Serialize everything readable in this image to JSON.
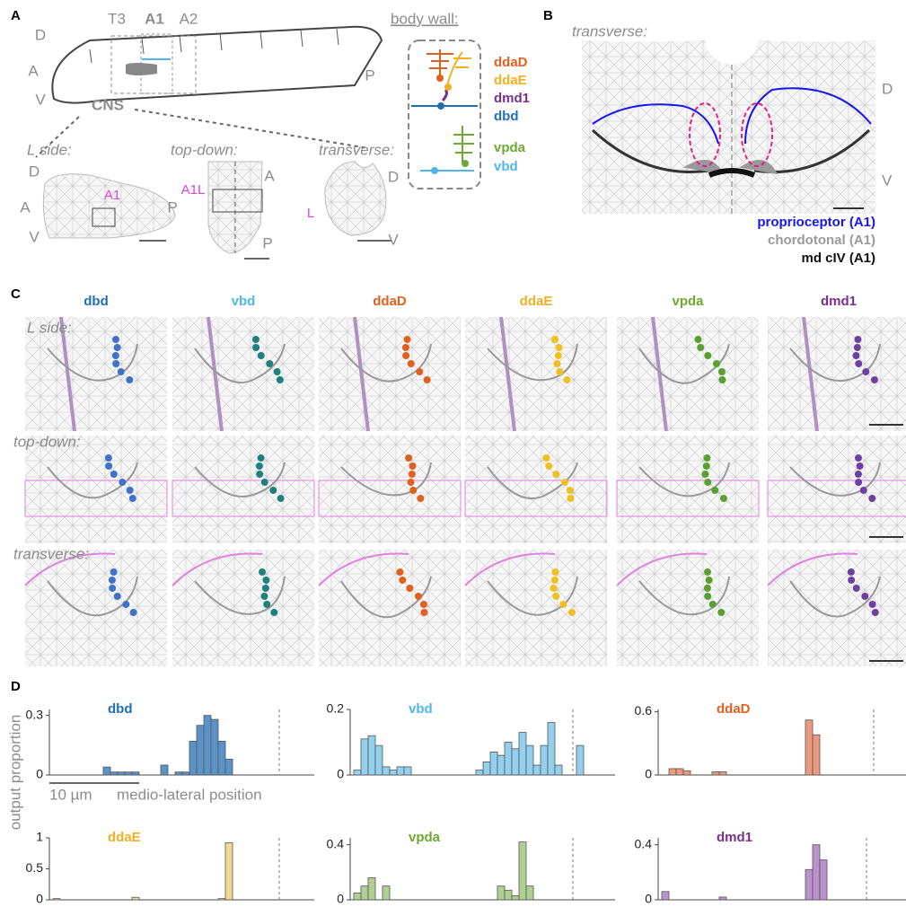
{
  "panel_a": {
    "letter": "A",
    "segments": [
      "T3",
      "A1",
      "A2"
    ],
    "left_axis": [
      "D",
      "A",
      "V"
    ],
    "right_axis": "P",
    "cns": "CNS",
    "views": [
      "L side:",
      "top-down:",
      "transverse:"
    ],
    "l_side": [
      "D",
      "A",
      "V",
      "P",
      "A1"
    ],
    "top_down": [
      "A1L",
      "A",
      "P"
    ],
    "transverse": [
      "D",
      "L",
      "V"
    ],
    "body_wall_title": "body wall:",
    "neurons": [
      {
        "name": "ddaD",
        "color": "#e0601e"
      },
      {
        "name": "ddaE",
        "color": "#f0b020"
      },
      {
        "name": "dmd1",
        "color": "#7a2f8f"
      },
      {
        "name": "dbd",
        "color": "#1f6fb8"
      },
      {
        "name": "vpda",
        "color": "#6aaa30"
      },
      {
        "name": "vbd",
        "color": "#4fb7e8"
      }
    ]
  },
  "panel_b": {
    "letter": "B",
    "view": "transverse:",
    "dorsal": "D",
    "ventral": "V",
    "legend": [
      {
        "name": "proprioceptor (A1)",
        "color": "#1515f0"
      },
      {
        "name": "chordotonal (A1)",
        "color": "#9a9a9a"
      },
      {
        "name": "md cIV (A1)",
        "color": "#111111"
      }
    ]
  },
  "panel_c": {
    "letter": "C",
    "neurons": [
      {
        "name": "dbd",
        "color": "#1f6fb8",
        "mark": "#3f72c8"
      },
      {
        "name": "vbd",
        "color": "#4fb7e8",
        "mark": "#1f8080"
      },
      {
        "name": "ddaD",
        "color": "#e0601e",
        "mark": "#e0601e"
      },
      {
        "name": "ddaE",
        "color": "#f0b020",
        "mark": "#f0c020"
      },
      {
        "name": "vpda",
        "color": "#6aaa30",
        "mark": "#5aa030"
      },
      {
        "name": "dmd1",
        "color": "#7a2f8f",
        "mark": "#7040a0"
      }
    ],
    "rows": [
      "L side:",
      "top-down:",
      "transverse:"
    ]
  },
  "panel_d": {
    "letter": "D",
    "y_label": "output proportion",
    "scale_bar": "10 µm",
    "x_label": "medio-lateral position"
  },
  "chart_data": [
    {
      "type": "bar",
      "title": "dbd",
      "title_color": "#1f6fb8",
      "color": "#5b93c8",
      "categories": [
        null,
        null,
        null,
        null,
        null,
        null,
        null,
        null,
        null,
        null,
        null,
        null,
        null,
        null,
        null,
        null,
        null,
        null,
        null,
        null,
        null,
        null,
        null,
        null,
        null,
        null,
        null,
        null,
        null,
        null,
        null,
        null,
        null,
        null,
        null,
        null
      ],
      "values": [
        0,
        0,
        0,
        0,
        0,
        0,
        0,
        0.04,
        0.015,
        0.015,
        0.015,
        0.015,
        0,
        0,
        0,
        0.05,
        0,
        0.015,
        0.015,
        0.17,
        0.25,
        0.3,
        0.28,
        0.17,
        0.08,
        0,
        0,
        0,
        0,
        0,
        0,
        0,
        0,
        0,
        0,
        0
      ],
      "ylim": [
        0,
        0.33
      ],
      "yticks": [
        0,
        0.3
      ]
    },
    {
      "type": "bar",
      "title": "vbd",
      "title_color": "#4fb7e8",
      "color": "#92d0ee",
      "categories": [
        null,
        null,
        null,
        null,
        null,
        null,
        null,
        null,
        null,
        null,
        null,
        null,
        null,
        null,
        null,
        null,
        null,
        null,
        null,
        null,
        null,
        null,
        null,
        null,
        null,
        null,
        null,
        null,
        null,
        null,
        null,
        null,
        null,
        null,
        null,
        null
      ],
      "values": [
        0.015,
        0.11,
        0.12,
        0.09,
        0.025,
        0.015,
        0.025,
        0.025,
        0,
        0,
        0,
        0,
        0,
        0,
        0,
        0,
        0,
        0.015,
        0.04,
        0.07,
        0.06,
        0.1,
        0.08,
        0.13,
        0.09,
        0.03,
        0.09,
        0.16,
        0.03,
        0,
        0,
        0.09,
        0,
        0,
        0,
        0
      ],
      "ylim": [
        0,
        0.2
      ],
      "yticks": [
        0,
        0.2
      ]
    },
    {
      "type": "bar",
      "title": "ddaD",
      "title_color": "#e0601e",
      "color": "#eb9a80",
      "categories": [
        null,
        null,
        null,
        null,
        null,
        null,
        null,
        null,
        null,
        null,
        null,
        null,
        null,
        null,
        null,
        null,
        null,
        null,
        null,
        null,
        null,
        null,
        null,
        null,
        null,
        null,
        null,
        null,
        null,
        null,
        null,
        null,
        null,
        null,
        null,
        null
      ],
      "values": [
        0,
        0.06,
        0.06,
        0.04,
        0,
        0,
        0,
        0.03,
        0.03,
        0,
        0,
        0,
        0,
        0,
        0,
        0,
        0,
        0,
        0,
        0,
        0.52,
        0.38,
        0,
        0,
        0,
        0,
        0,
        0,
        0,
        0,
        0,
        0,
        0,
        0,
        0,
        0
      ],
      "ylim": [
        0,
        0.62
      ],
      "yticks": [
        0,
        0.6
      ]
    },
    {
      "type": "bar",
      "title": "ddaE",
      "title_color": "#f0b020",
      "color": "#f4d890",
      "categories": [
        null,
        null,
        null,
        null,
        null,
        null,
        null,
        null,
        null,
        null,
        null,
        null,
        null,
        null,
        null,
        null,
        null,
        null,
        null,
        null,
        null,
        null,
        null,
        null,
        null,
        null,
        null,
        null,
        null,
        null,
        null,
        null,
        null,
        null,
        null,
        null
      ],
      "values": [
        0.02,
        0,
        0,
        0,
        0,
        0,
        0,
        0,
        0,
        0,
        0,
        0.04,
        0,
        0,
        0,
        0,
        0,
        0,
        0,
        0,
        0,
        0,
        0,
        0.02,
        0.92,
        0,
        0,
        0,
        0,
        0,
        0,
        0,
        0,
        0,
        0,
        0
      ],
      "ylim": [
        0,
        1
      ],
      "yticks": [
        0,
        0.5,
        1
      ]
    },
    {
      "type": "bar",
      "title": "vpda",
      "title_color": "#6aaa30",
      "color": "#b0cf92",
      "categories": [
        null,
        null,
        null,
        null,
        null,
        null,
        null,
        null,
        null,
        null,
        null,
        null,
        null,
        null,
        null,
        null,
        null,
        null,
        null,
        null,
        null,
        null,
        null,
        null,
        null,
        null,
        null,
        null,
        null,
        null,
        null,
        null,
        null,
        null,
        null,
        null
      ],
      "values": [
        0.05,
        0.1,
        0.16,
        0,
        0.1,
        0,
        0,
        0,
        0,
        0,
        0,
        0,
        0,
        0,
        0,
        0,
        0,
        0,
        0,
        0,
        0.1,
        0.07,
        0.03,
        0.42,
        0.1,
        0,
        0,
        0,
        0,
        0,
        0,
        0,
        0,
        0,
        0,
        0
      ],
      "ylim": [
        0,
        0.45
      ],
      "yticks": [
        0,
        0.4
      ]
    },
    {
      "type": "bar",
      "title": "dmd1",
      "title_color": "#7a2f8f",
      "color": "#bb92cc",
      "categories": [
        null,
        null,
        null,
        null,
        null,
        null,
        null,
        null,
        null,
        null,
        null,
        null,
        null,
        null,
        null,
        null,
        null,
        null,
        null,
        null,
        null,
        null,
        null,
        null,
        null,
        null,
        null,
        null,
        null,
        null,
        null,
        null,
        null,
        null,
        null,
        null
      ],
      "values": [
        0.06,
        0,
        0,
        0,
        0,
        0,
        0,
        0,
        0.02,
        0,
        0,
        0,
        0,
        0,
        0,
        0,
        0,
        0,
        0,
        0,
        0.22,
        0.4,
        0.29,
        0,
        0,
        0,
        0,
        0,
        0,
        0,
        0,
        0,
        0,
        0,
        0,
        0
      ],
      "ylim": [
        0,
        0.45
      ],
      "yticks": [
        0,
        0.4
      ]
    }
  ]
}
